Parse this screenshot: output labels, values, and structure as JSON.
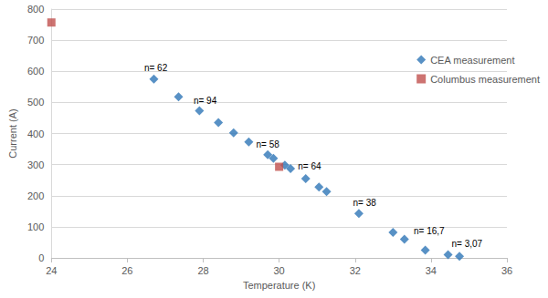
{
  "chart_data": {
    "type": "scatter",
    "x_label": "Temperature (K)",
    "y_label": "Current (A)",
    "xlim": [
      24,
      36
    ],
    "xticks": [
      24,
      26,
      28,
      30,
      32,
      34,
      36
    ],
    "ylim": [
      0,
      800
    ],
    "yticks": [
      0,
      100,
      200,
      300,
      400,
      500,
      600,
      700,
      800
    ],
    "grid": true,
    "legend": "right",
    "series": [
      {
        "name": "CEA measurement",
        "color": "#2e75b6",
        "marker": "diamond",
        "x": [
          26.7,
          27.35,
          27.9,
          28.4,
          28.8,
          29.2,
          29.7,
          29.85,
          30.15,
          30.3,
          30.7,
          31.05,
          31.25,
          32.1,
          33.0,
          33.3,
          33.85,
          34.45,
          34.75
        ],
        "values": [
          575,
          518,
          473,
          435,
          402,
          373,
          332,
          320,
          298,
          287,
          255,
          228,
          213,
          143,
          82,
          60,
          25,
          10,
          5
        ]
      },
      {
        "name": "Columbus measurement",
        "color": "#c0504d",
        "marker": "square",
        "x": [
          24,
          30
        ],
        "values": [
          757,
          293
        ]
      }
    ],
    "annotations": [
      {
        "text": "n= 62",
        "x": 26.75,
        "y": 612
      },
      {
        "text": "n= 94",
        "x": 28.05,
        "y": 505
      },
      {
        "text": "n= 58",
        "x": 29.7,
        "y": 365
      },
      {
        "text": "n= 64",
        "x": 30.8,
        "y": 295
      },
      {
        "text": "n= 38",
        "x": 32.25,
        "y": 178
      },
      {
        "text": "n= 16,7",
        "x": 33.95,
        "y": 85
      },
      {
        "text": "n= 3,07",
        "x": 34.95,
        "y": 45
      }
    ]
  }
}
